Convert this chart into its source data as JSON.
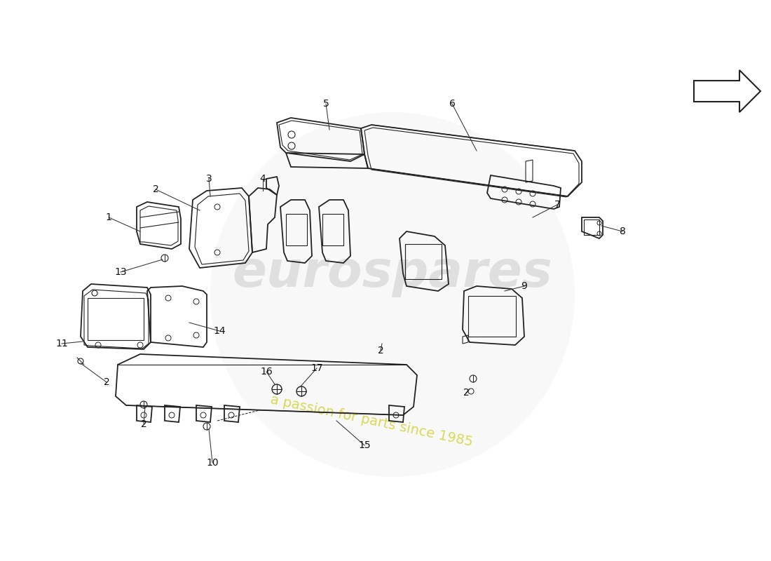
{
  "background_color": "#ffffff",
  "line_color": "#222222",
  "label_color": "#111111",
  "arrow_color": "#333333",
  "fig_width": 11.0,
  "fig_height": 8.0,
  "dpi": 100,
  "watermark_euro": "eurospares",
  "watermark_sub": "a passion for parts since 1985",
  "wm_color1": "#cccccc",
  "wm_color2": "#cccc00"
}
